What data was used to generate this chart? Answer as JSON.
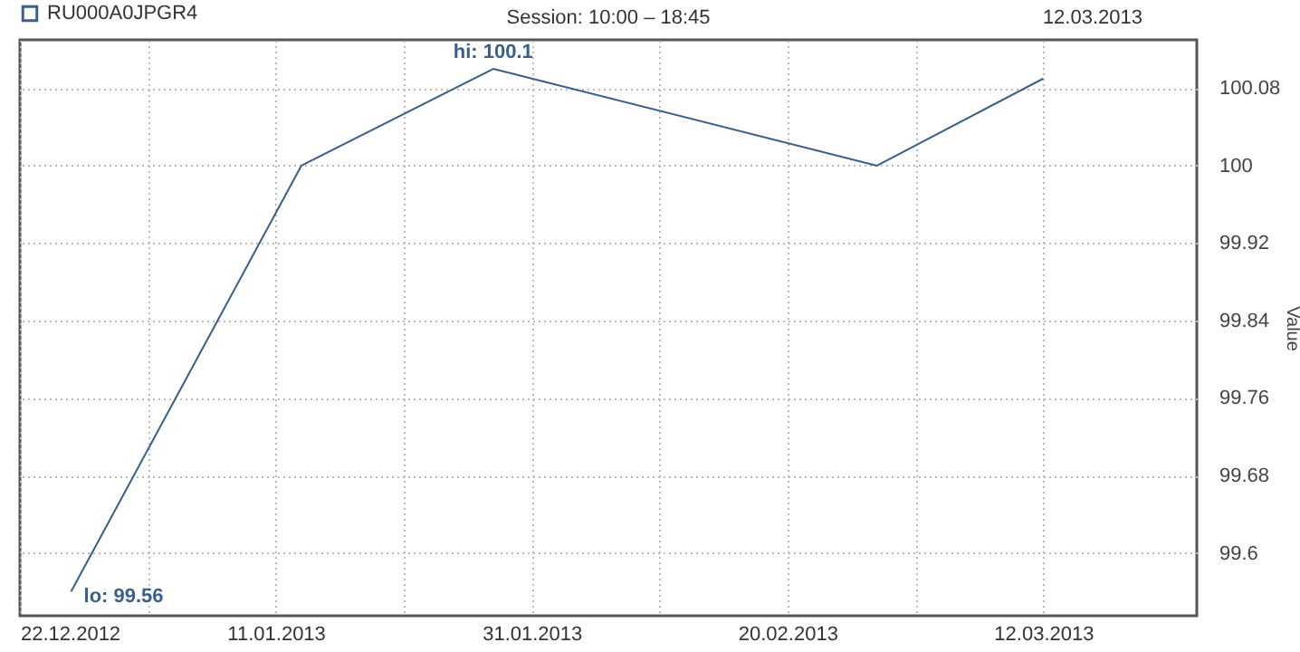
{
  "chart_data": {
    "type": "line",
    "title": "Session: 10:00 – 18:45",
    "ylabel": "Value",
    "x": [
      "2012-12-26",
      "2013-01-13",
      "2013-01-28",
      "2013-02-27",
      "2013-03-12"
    ],
    "series": [
      {
        "name": "RU000A0JPGR4",
        "color": "#3a5f8a",
        "values": [
          99.56,
          100,
          100.1,
          100,
          100.09
        ]
      }
    ],
    "xlim": [
      "2012-12-22",
      "2013-03-24"
    ],
    "xticks": [
      {
        "value": "2012-12-22",
        "label": "22.12.2012"
      },
      {
        "value": "2013-01-01",
        "label": null
      },
      {
        "value": "2013-01-11",
        "label": "11.01.2013"
      },
      {
        "value": "2013-01-21",
        "label": null
      },
      {
        "value": "2013-01-31",
        "label": "31.01.2013"
      },
      {
        "value": "2013-02-10",
        "label": null
      },
      {
        "value": "2013-02-20",
        "label": "20.02.2013"
      },
      {
        "value": "2013-03-02",
        "label": null
      },
      {
        "value": "2013-03-12",
        "label": "12.03.2013"
      }
    ],
    "ylim": [
      99.535,
      100.13
    ],
    "yticks": [
      99.6,
      99.68,
      99.76,
      99.84,
      99.92,
      100,
      100.08
    ],
    "grid": true,
    "legend": "top left",
    "marker": "none",
    "line_style": "solid",
    "annotations": [
      "12.03.2013",
      {
        "text": "hi: 100.1",
        "x": "2013-01-28",
        "y": 100.1
      },
      {
        "text": "lo: 99.56",
        "x": "2012-12-26",
        "y": 99.56
      }
    ]
  }
}
